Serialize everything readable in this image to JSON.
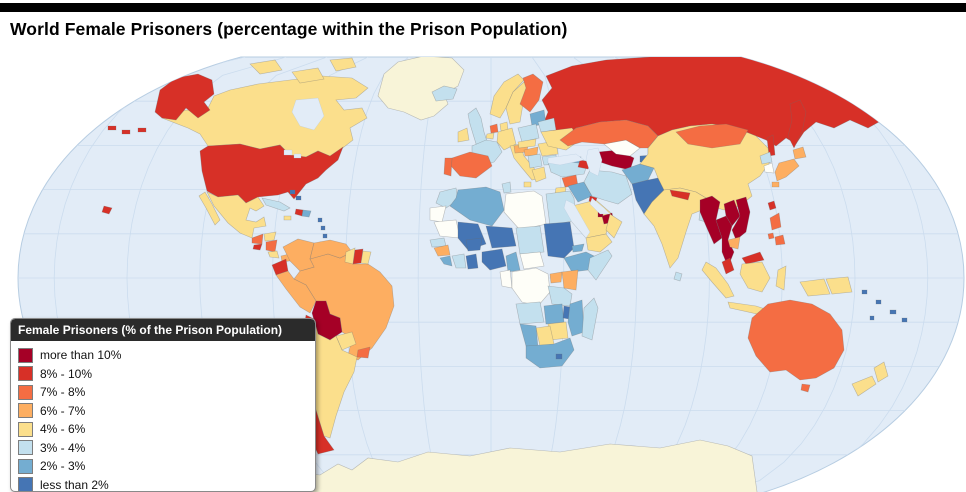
{
  "title": "World Female Prisoners (percentage within the Prison Population)",
  "legend": {
    "title": "Female Prisoners (% of the Prison Population)",
    "items": [
      {
        "key": "gt10",
        "label": "more than 10%",
        "color": "#A50026"
      },
      {
        "key": "8-10",
        "label": "8% - 10%",
        "color": "#D73027"
      },
      {
        "key": "7-8",
        "label": "7% - 8%",
        "color": "#F46D43"
      },
      {
        "key": "6-7",
        "label": "6% - 7%",
        "color": "#FDAE61"
      },
      {
        "key": "4-6",
        "label": "4% - 6%",
        "color": "#FBDF8C"
      },
      {
        "key": "3-4",
        "label": "3% - 4%",
        "color": "#C3E0EE"
      },
      {
        "key": "2-3",
        "label": "2% - 3%",
        "color": "#74ADD1"
      },
      {
        "key": "lt2",
        "label": "less than 2%",
        "color": "#4575B4"
      }
    ]
  },
  "map": {
    "ocean_color": "#E2ECF7",
    "graticule_color": "#CBDCEE",
    "outline_color": "#B7CDE2",
    "special_colors": {
      "no_data": "#FEFEF8",
      "polar": "#F8F4D8"
    },
    "regions": {
      "alaska": "8-10",
      "aleutians": "8-10",
      "hawaii": "8-10",
      "canada": "4-6",
      "arctic-islands": "4-6",
      "greenland": "polar",
      "usa": "8-10",
      "baja": "4-6",
      "mexico": "4-6",
      "guatemala": "7-8",
      "honduras": "4-6",
      "el-salvador": "8-10",
      "nicaragua": "7-8",
      "costa-rica": "4-6",
      "panama": "6-7",
      "cuba": "3-4",
      "jamaica": "4-6",
      "haiti": "8-10",
      "dominican-republic": "2-3",
      "bahamas": "lt2",
      "lesser-antilles": "lt2",
      "colombia": "6-7",
      "venezuela": "6-7",
      "guyana": "4-6",
      "suriname": "8-10",
      "french-guiana": "4-6",
      "ecuador": "8-10",
      "peru": "6-7",
      "brazil": "6-7",
      "bolivia": "gt10",
      "paraguay": "4-6",
      "uruguay": "7-8",
      "chile": "8-10",
      "argentina": "4-6",
      "iceland": "3-4",
      "uk": "3-4",
      "ireland": "4-6",
      "norway": "4-6",
      "sweden": "4-6",
      "finland": "7-8",
      "baltics": "2-3",
      "denmark": "4-6",
      "netherlands": "7-8",
      "belgium": "4-6",
      "germany": "4-6",
      "france": "3-4",
      "spain": "7-8",
      "portugal": "7-8",
      "italy": "4-6",
      "sicily": "4-6",
      "austria": "6-7",
      "poland": "3-4",
      "czech-slovakia": "4-6",
      "hungary": "6-7",
      "balkans": "3-4",
      "greece": "4-6",
      "romania": "4-6",
      "bulgaria": "3-4",
      "belarus": "3-4",
      "ukraine": "4-6",
      "russia": "8-10",
      "kamchatka": "8-10",
      "sakhalin": "8-10",
      "turkey": "3-4",
      "georgia-armenia": "2-3",
      "azerbaijan": "8-10",
      "syria": "7-8",
      "jordan": "4-6",
      "iraq": "2-3",
      "kuwait": "8-10",
      "saudi-arabia": "4-6",
      "qatar": "gt10",
      "uae": "gt10",
      "oman": "4-6",
      "yemen": "4-6",
      "iran": "3-4",
      "turkmenistan": "gt10",
      "uzbekistan": "no_data",
      "kazakhstan": "7-8",
      "kyrgyzstan": "2-3",
      "tajikistan": "lt2",
      "afghanistan": "2-3",
      "pakistan": "lt2",
      "india": "4-6",
      "nepal": "8-10",
      "bangladesh": "3-4",
      "sri-lanka": "3-4",
      "china": "4-6",
      "mongolia": "7-8",
      "north-korea": "3-4",
      "south-korea": "no_data",
      "japan": "6-7",
      "taiwan": "8-10",
      "myanmar": "gt10",
      "thailand": "gt10",
      "laos": "gt10",
      "vietnam": "gt10",
      "cambodia": "6-7",
      "malaysia": "8-10",
      "malaysia-borneo": "8-10",
      "philippines": "7-8",
      "indonesia": "4-6",
      "papua-new-guinea": "4-6",
      "morocco": "3-4",
      "western-sahara": "no_data",
      "algeria": "2-3",
      "tunisia": "3-4",
      "libya": "no_data",
      "egypt": "3-4",
      "mauritania": "no_data",
      "senegal": "3-4",
      "mali": "lt2",
      "burkina-faso": "lt2",
      "niger": "lt2",
      "chad": "3-4",
      "sudan": "lt2",
      "eritrea": "2-3",
      "ethiopia": "2-3",
      "somalia": "3-4",
      "guinea": "6-7",
      "liberia": "2-3",
      "ivory-coast": "3-4",
      "ghana": "lt2",
      "nigeria": "lt2",
      "cameroon": "2-3",
      "central-african-republic": "no_data",
      "congo-gabon": "no_data",
      "drc": "no_data",
      "uganda": "6-7",
      "kenya": "6-7",
      "tanzania": "3-4",
      "angola": "3-4",
      "zambia": "2-3",
      "malawi": "lt2",
      "mozambique": "2-3",
      "zimbabwe": "4-6",
      "botswana": "4-6",
      "namibia": "2-3",
      "south-africa": "2-3",
      "lesotho": "lt2",
      "madagascar": "3-4",
      "australia": "7-8",
      "tasmania": "7-8",
      "new-zealand": "4-6",
      "pacific-islands": "lt2",
      "antarctica": "polar"
    }
  }
}
